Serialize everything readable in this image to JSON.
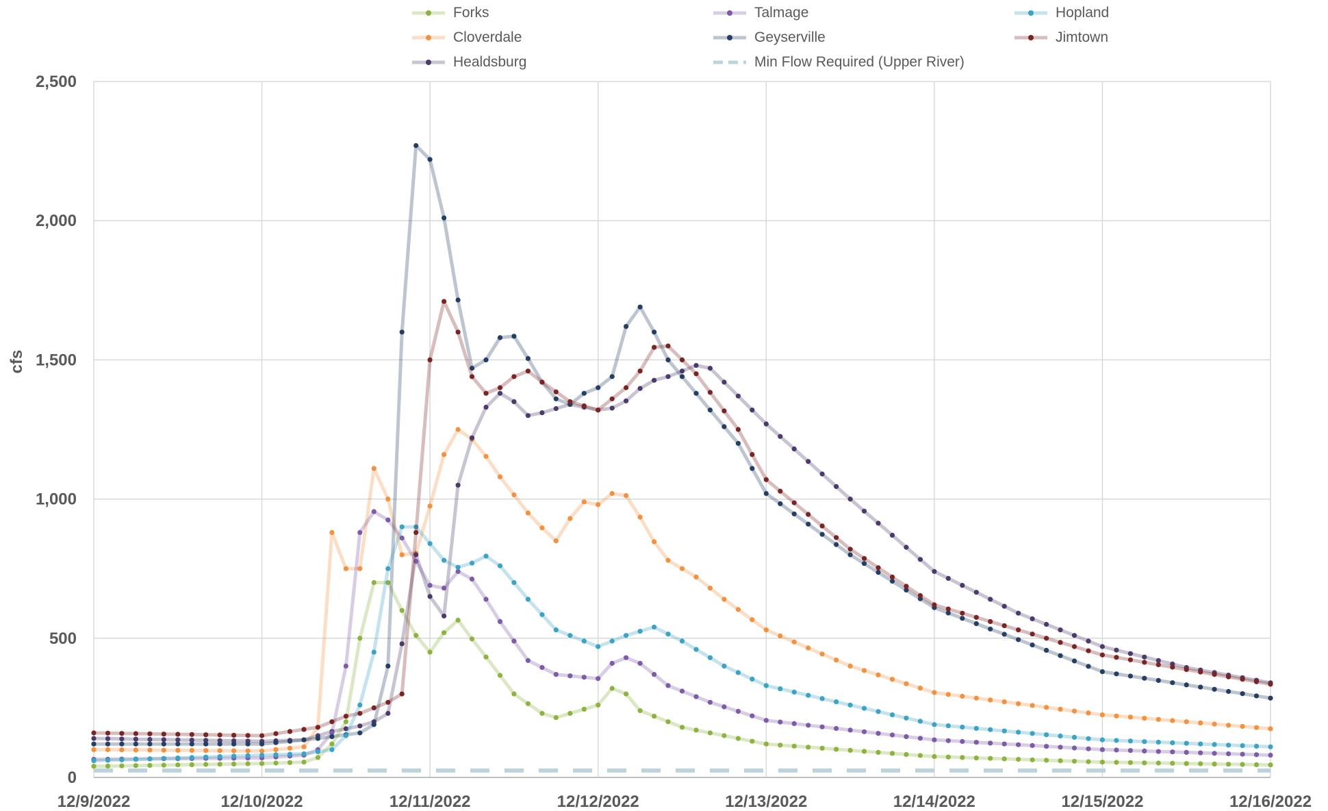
{
  "chart_data": {
    "type": "line",
    "title": "",
    "xlabel": "",
    "ylabel": "cfs",
    "ylim": [
      0,
      2500
    ],
    "y_ticks": [
      {
        "value": 0,
        "label": "0"
      },
      {
        "value": 500,
        "label": "500"
      },
      {
        "value": 1000,
        "label": "1,000"
      },
      {
        "value": 1500,
        "label": "1,500"
      },
      {
        "value": 2000,
        "label": "2,000"
      },
      {
        "value": 2500,
        "label": "2,500"
      }
    ],
    "x_ticks": [
      "12/9/2022",
      "12/10/2022",
      "12/11/2022",
      "12/12/2022",
      "12/13/2022",
      "12/14/2022",
      "12/15/2022",
      "12/16/2022"
    ],
    "xlim": [
      "2022-12-09 00:00",
      "2022-12-16 00:00"
    ],
    "grid": true,
    "legend_position": "top",
    "series": [
      {
        "name": "Forks",
        "color": "#8cb33e",
        "points": [
          [
            "2022-12-09 00:00",
            40
          ],
          [
            "2022-12-09 12:00",
            45
          ],
          [
            "2022-12-10 00:00",
            50
          ],
          [
            "2022-12-10 06:00",
            55
          ],
          [
            "2022-12-10 09:00",
            80
          ],
          [
            "2022-12-10 12:00",
            200
          ],
          [
            "2022-12-10 14:00",
            500
          ],
          [
            "2022-12-10 16:00",
            700
          ],
          [
            "2022-12-10 17:00",
            750
          ],
          [
            "2022-12-10 19:00",
            650
          ],
          [
            "2022-12-10 21:00",
            550
          ],
          [
            "2022-12-10 23:00",
            470
          ],
          [
            "2022-12-11 00:00",
            450
          ],
          [
            "2022-12-11 02:00",
            520
          ],
          [
            "2022-12-11 03:00",
            600
          ],
          [
            "2022-12-11 05:00",
            530
          ],
          [
            "2022-12-11 09:00",
            400
          ],
          [
            "2022-12-11 12:00",
            300
          ],
          [
            "2022-12-11 16:00",
            230
          ],
          [
            "2022-12-11 18:00",
            215
          ],
          [
            "2022-12-11 20:00",
            230
          ],
          [
            "2022-12-12 00:00",
            260
          ],
          [
            "2022-12-12 02:00",
            320
          ],
          [
            "2022-12-12 04:00",
            300
          ],
          [
            "2022-12-12 06:00",
            240
          ],
          [
            "2022-12-12 12:00",
            180
          ],
          [
            "2022-12-13 00:00",
            120
          ],
          [
            "2022-12-14 00:00",
            75
          ],
          [
            "2022-12-15 00:00",
            55
          ],
          [
            "2022-12-16 00:00",
            45
          ]
        ]
      },
      {
        "name": "Cloverdale",
        "color": "#f2913f",
        "points": [
          [
            "2022-12-09 00:00",
            100
          ],
          [
            "2022-12-10 00:00",
            95
          ],
          [
            "2022-12-10 06:00",
            110
          ],
          [
            "2022-12-10 08:00",
            180
          ],
          [
            "2022-12-10 09:00",
            460
          ],
          [
            "2022-12-10 10:00",
            880
          ],
          [
            "2022-12-10 11:00",
            900
          ],
          [
            "2022-12-10 12:00",
            750
          ],
          [
            "2022-12-10 13:00",
            680
          ],
          [
            "2022-12-10 14:00",
            750
          ],
          [
            "2022-12-10 15:00",
            1000
          ],
          [
            "2022-12-10 16:00",
            1110
          ],
          [
            "2022-12-10 17:00",
            1090
          ],
          [
            "2022-12-10 18:00",
            1000
          ],
          [
            "2022-12-10 19:00",
            900
          ],
          [
            "2022-12-10 20:00",
            800
          ],
          [
            "2022-12-10 21:00",
            760
          ],
          [
            "2022-12-10 23:00",
            850
          ],
          [
            "2022-12-11 01:00",
            1100
          ],
          [
            "2022-12-11 03:00",
            1220
          ],
          [
            "2022-12-11 04:00",
            1250
          ],
          [
            "2022-12-11 05:00",
            1240
          ],
          [
            "2022-12-11 07:00",
            1190
          ],
          [
            "2022-12-11 10:00",
            1080
          ],
          [
            "2022-12-11 14:00",
            950
          ],
          [
            "2022-12-11 17:00",
            870
          ],
          [
            "2022-12-11 18:00",
            850
          ],
          [
            "2022-12-11 20:00",
            930
          ],
          [
            "2022-12-11 22:00",
            990
          ],
          [
            "2022-12-12 00:00",
            980
          ],
          [
            "2022-12-12 02:00",
            1020
          ],
          [
            "2022-12-12 03:00",
            1035
          ],
          [
            "2022-12-12 05:00",
            990
          ],
          [
            "2022-12-12 07:00",
            880
          ],
          [
            "2022-12-12 10:00",
            780
          ],
          [
            "2022-12-12 14:00",
            720
          ],
          [
            "2022-12-12 18:00",
            640
          ],
          [
            "2022-12-13 00:00",
            530
          ],
          [
            "2022-12-13 12:00",
            400
          ],
          [
            "2022-12-14 00:00",
            305
          ],
          [
            "2022-12-15 00:00",
            225
          ],
          [
            "2022-12-16 00:00",
            175
          ]
        ]
      },
      {
        "name": "Healdsburg",
        "color": "#4b3a6b",
        "points": [
          [
            "2022-12-09 00:00",
            140
          ],
          [
            "2022-12-10 00:00",
            130
          ],
          [
            "2022-12-10 06:00",
            135
          ],
          [
            "2022-12-10 10:00",
            165
          ],
          [
            "2022-12-10 14:00",
            185
          ],
          [
            "2022-12-10 16:00",
            200
          ],
          [
            "2022-12-10 18:00",
            230
          ],
          [
            "2022-12-10 19:00",
            320
          ],
          [
            "2022-12-10 20:00",
            480
          ],
          [
            "2022-12-10 22:00",
            800
          ],
          [
            "2022-12-11 00:00",
            650
          ],
          [
            "2022-12-11 02:00",
            580
          ],
          [
            "2022-12-11 03:00",
            800
          ],
          [
            "2022-12-11 04:00",
            1050
          ],
          [
            "2022-12-11 06:00",
            1220
          ],
          [
            "2022-12-11 08:00",
            1330
          ],
          [
            "2022-12-11 10:00",
            1380
          ],
          [
            "2022-12-11 12:00",
            1350
          ],
          [
            "2022-12-11 14:00",
            1300
          ],
          [
            "2022-12-11 16:00",
            1310
          ],
          [
            "2022-12-11 20:00",
            1340
          ],
          [
            "2022-12-12 00:00",
            1320
          ],
          [
            "2022-12-12 03:00",
            1330
          ],
          [
            "2022-12-12 07:00",
            1420
          ],
          [
            "2022-12-12 10:00",
            1440
          ],
          [
            "2022-12-12 14:00",
            1480
          ],
          [
            "2022-12-12 16:00",
            1470
          ],
          [
            "2022-12-12 20:00",
            1370
          ],
          [
            "2022-12-13 00:00",
            1270
          ],
          [
            "2022-12-13 12:00",
            1000
          ],
          [
            "2022-12-14 00:00",
            740
          ],
          [
            "2022-12-14 12:00",
            590
          ],
          [
            "2022-12-15 00:00",
            470
          ],
          [
            "2022-12-15 12:00",
            395
          ],
          [
            "2022-12-16 00:00",
            340
          ]
        ]
      },
      {
        "name": "Talmage",
        "color": "#7e5ba6",
        "points": [
          [
            "2022-12-09 00:00",
            65
          ],
          [
            "2022-12-10 00:00",
            70
          ],
          [
            "2022-12-10 06:00",
            80
          ],
          [
            "2022-12-10 08:00",
            100
          ],
          [
            "2022-12-10 10:00",
            160
          ],
          [
            "2022-12-10 12:00",
            400
          ],
          [
            "2022-12-10 14:00",
            880
          ],
          [
            "2022-12-10 15:00",
            960
          ],
          [
            "2022-12-10 17:00",
            950
          ],
          [
            "2022-12-10 19:00",
            900
          ],
          [
            "2022-12-10 21:00",
            820
          ],
          [
            "2022-12-11 00:00",
            690
          ],
          [
            "2022-12-11 02:00",
            680
          ],
          [
            "2022-12-11 04:00",
            740
          ],
          [
            "2022-12-11 05:00",
            745
          ],
          [
            "2022-12-11 07:00",
            680
          ],
          [
            "2022-12-11 10:00",
            560
          ],
          [
            "2022-12-11 14:00",
            420
          ],
          [
            "2022-12-11 18:00",
            370
          ],
          [
            "2022-12-12 00:00",
            355
          ],
          [
            "2022-12-12 02:00",
            410
          ],
          [
            "2022-12-12 04:00",
            430
          ],
          [
            "2022-12-12 06:00",
            410
          ],
          [
            "2022-12-12 10:00",
            330
          ],
          [
            "2022-12-12 16:00",
            270
          ],
          [
            "2022-12-13 00:00",
            205
          ],
          [
            "2022-12-14 00:00",
            135
          ],
          [
            "2022-12-15 00:00",
            100
          ],
          [
            "2022-12-16 00:00",
            80
          ]
        ]
      },
      {
        "name": "Geyserville",
        "color": "#253e63",
        "points": [
          [
            "2022-12-09 00:00",
            120
          ],
          [
            "2022-12-10 00:00",
            120
          ],
          [
            "2022-12-10 08:00",
            140
          ],
          [
            "2022-12-10 14:00",
            160
          ],
          [
            "2022-12-10 16:00",
            190
          ],
          [
            "2022-12-10 17:00",
            270
          ],
          [
            "2022-12-10 18:00",
            400
          ],
          [
            "2022-12-10 19:00",
            800
          ],
          [
            "2022-12-10 20:00",
            1600
          ],
          [
            "2022-12-10 21:00",
            2060
          ],
          [
            "2022-12-10 22:00",
            2270
          ],
          [
            "2022-12-10 23:00",
            2270
          ],
          [
            "2022-12-11 00:00",
            2220
          ],
          [
            "2022-12-11 01:00",
            2140
          ],
          [
            "2022-12-11 02:00",
            2010
          ],
          [
            "2022-12-11 03:00",
            1850
          ],
          [
            "2022-12-11 05:00",
            1580
          ],
          [
            "2022-12-11 06:00",
            1470
          ],
          [
            "2022-12-11 07:00",
            1450
          ],
          [
            "2022-12-11 09:00",
            1550
          ],
          [
            "2022-12-11 11:00",
            1610
          ],
          [
            "2022-12-11 13:00",
            1560
          ],
          [
            "2022-12-11 15:00",
            1450
          ],
          [
            "2022-12-11 18:00",
            1360
          ],
          [
            "2022-12-11 20:00",
            1340
          ],
          [
            "2022-12-11 22:00",
            1380
          ],
          [
            "2022-12-12 00:00",
            1400
          ],
          [
            "2022-12-12 02:00",
            1440
          ],
          [
            "2022-12-12 04:00",
            1620
          ],
          [
            "2022-12-12 05:00",
            1700
          ],
          [
            "2022-12-12 06:00",
            1690
          ],
          [
            "2022-12-12 08:00",
            1600
          ],
          [
            "2022-12-12 10:00",
            1500
          ],
          [
            "2022-12-12 14:00",
            1380
          ],
          [
            "2022-12-12 20:00",
            1200
          ],
          [
            "2022-12-13 00:00",
            1020
          ],
          [
            "2022-12-13 12:00",
            800
          ],
          [
            "2022-12-14 00:00",
            610
          ],
          [
            "2022-12-15 00:00",
            380
          ],
          [
            "2022-12-16 00:00",
            285
          ]
        ]
      },
      {
        "name": "Min Flow Required (Upper River)",
        "color": "#bcd3db",
        "dashed": true,
        "points": [
          [
            "2022-12-09 00:00",
            25
          ],
          [
            "2022-12-16 00:00",
            25
          ]
        ]
      },
      {
        "name": "Hopland",
        "color": "#3ba3c4",
        "points": [
          [
            "2022-12-09 00:00",
            60
          ],
          [
            "2022-12-10 00:00",
            80
          ],
          [
            "2022-12-10 06:00",
            85
          ],
          [
            "2022-12-10 10:00",
            100
          ],
          [
            "2022-12-10 12:00",
            150
          ],
          [
            "2022-12-10 14:00",
            260
          ],
          [
            "2022-12-10 16:00",
            450
          ],
          [
            "2022-12-10 18:00",
            750
          ],
          [
            "2022-12-10 20:00",
            900
          ],
          [
            "2022-12-10 21:00",
            920
          ],
          [
            "2022-12-10 23:00",
            880
          ],
          [
            "2022-12-11 01:00",
            800
          ],
          [
            "2022-12-11 03:00",
            760
          ],
          [
            "2022-12-11 05:00",
            750
          ],
          [
            "2022-12-11 07:00",
            790
          ],
          [
            "2022-12-11 08:00",
            795
          ],
          [
            "2022-12-11 10:00",
            760
          ],
          [
            "2022-12-11 14:00",
            640
          ],
          [
            "2022-12-11 18:00",
            530
          ],
          [
            "2022-12-12 00:00",
            470
          ],
          [
            "2022-12-12 04:00",
            510
          ],
          [
            "2022-12-12 08:00",
            540
          ],
          [
            "2022-12-12 12:00",
            490
          ],
          [
            "2022-12-12 18:00",
            400
          ],
          [
            "2022-12-13 00:00",
            330
          ],
          [
            "2022-12-14 00:00",
            190
          ],
          [
            "2022-12-15 00:00",
            135
          ],
          [
            "2022-12-16 00:00",
            110
          ]
        ]
      },
      {
        "name": "Jimtown",
        "color": "#7a2424",
        "points": [
          [
            "2022-12-09 00:00",
            160
          ],
          [
            "2022-12-10 00:00",
            150
          ],
          [
            "2022-12-10 08:00",
            180
          ],
          [
            "2022-12-10 10:00",
            200
          ],
          [
            "2022-12-10 12:00",
            220
          ],
          [
            "2022-12-10 14:00",
            230
          ],
          [
            "2022-12-10 16:00",
            250
          ],
          [
            "2022-12-10 18:00",
            270
          ],
          [
            "2022-12-10 20:00",
            300
          ],
          [
            "2022-12-10 21:00",
            480
          ],
          [
            "2022-12-10 22:00",
            880
          ],
          [
            "2022-12-10 23:00",
            1270
          ],
          [
            "2022-12-11 00:00",
            1500
          ],
          [
            "2022-12-11 01:00",
            1690
          ],
          [
            "2022-12-11 02:00",
            1710
          ],
          [
            "2022-12-11 03:00",
            1680
          ],
          [
            "2022-12-11 04:00",
            1600
          ],
          [
            "2022-12-11 06:00",
            1440
          ],
          [
            "2022-12-11 08:00",
            1380
          ],
          [
            "2022-12-11 10:00",
            1400
          ],
          [
            "2022-12-11 12:00",
            1440
          ],
          [
            "2022-12-11 14:00",
            1460
          ],
          [
            "2022-12-11 16:00",
            1420
          ],
          [
            "2022-12-11 20:00",
            1350
          ],
          [
            "2022-12-12 00:00",
            1320
          ],
          [
            "2022-12-12 04:00",
            1400
          ],
          [
            "2022-12-12 06:00",
            1460
          ],
          [
            "2022-12-12 08:00",
            1545
          ],
          [
            "2022-12-12 10:00",
            1550
          ],
          [
            "2022-12-12 14:00",
            1450
          ],
          [
            "2022-12-12 20:00",
            1250
          ],
          [
            "2022-12-13 00:00",
            1070
          ],
          [
            "2022-12-13 12:00",
            820
          ],
          [
            "2022-12-14 00:00",
            620
          ],
          [
            "2022-12-15 00:00",
            440
          ],
          [
            "2022-12-16 00:00",
            335
          ]
        ]
      }
    ]
  }
}
